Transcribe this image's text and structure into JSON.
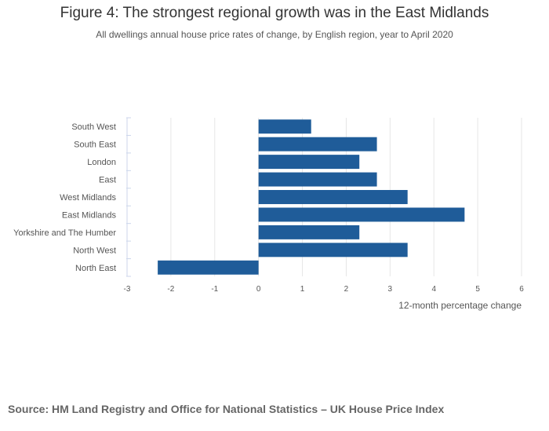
{
  "title": "Figure 4: The strongest regional growth was in the East Midlands",
  "subtitle": "All dwellings annual house price rates of change, by English region, year to April 2020",
  "source": "Source: HM Land Registry and Office for National Statistics – UK House Price Index",
  "colors": {
    "bar": "#1f5c99",
    "grid": "#e6e6e6",
    "text": "#555555"
  },
  "chart_data": {
    "type": "bar",
    "orientation": "horizontal",
    "categories": [
      "South West",
      "South East",
      "London",
      "East",
      "West Midlands",
      "East Midlands",
      "Yorkshire and The Humber",
      "North West",
      "North East"
    ],
    "values": [
      1.2,
      2.7,
      2.3,
      2.7,
      3.4,
      4.7,
      2.3,
      3.4,
      -2.3
    ],
    "xlabel": "12-month percentage change",
    "ylabel": "",
    "xlim": [
      -3,
      6
    ],
    "xticks": [
      "-3",
      "-2",
      "-1",
      "0",
      "1",
      "2",
      "3",
      "4",
      "5",
      "6"
    ],
    "grid": true,
    "legend": "none"
  }
}
